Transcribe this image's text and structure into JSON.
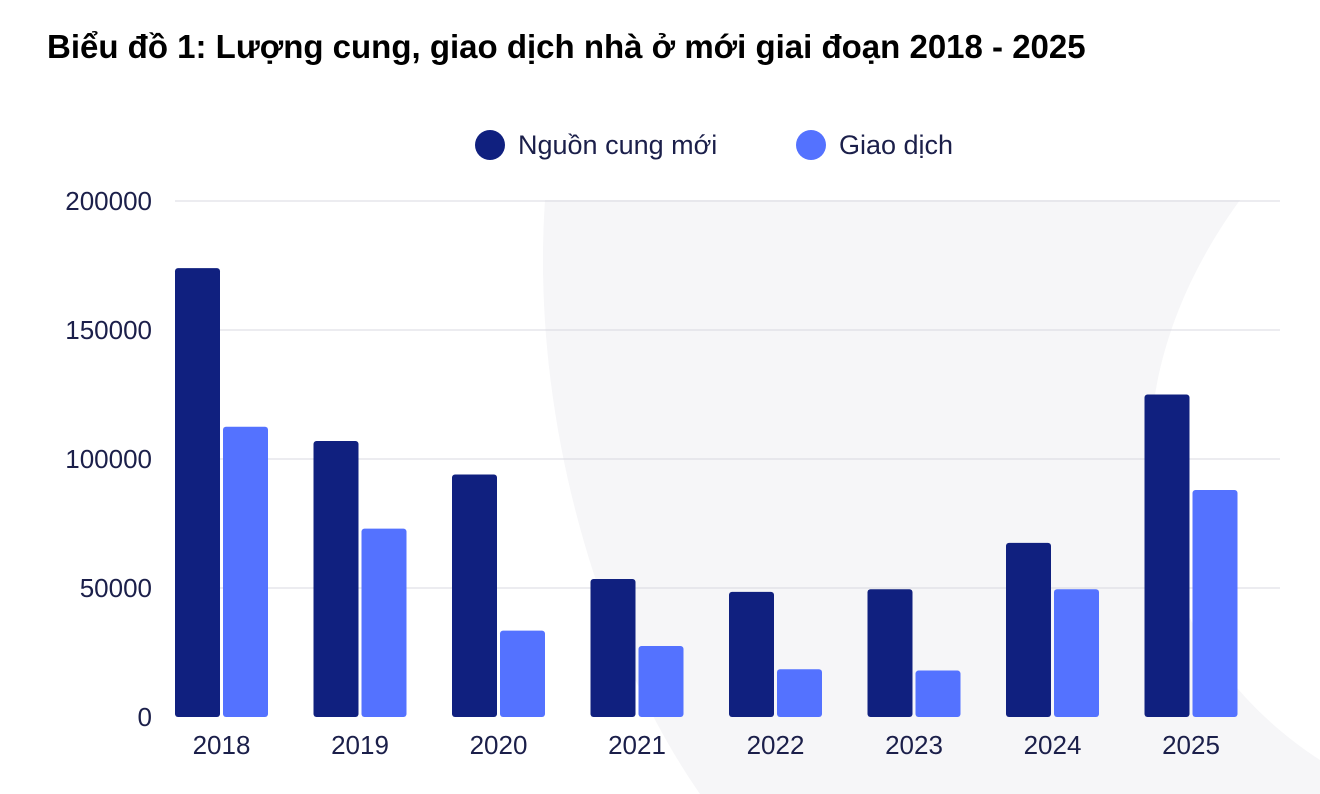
{
  "chart_data": {
    "type": "bar",
    "title": "Biểu đồ 1: Lượng cung, giao dịch nhà ở mới giai đoạn 2018 - 2025",
    "categories": [
      "2018",
      "2019",
      "2020",
      "2021",
      "2022",
      "2023",
      "2024",
      "2025"
    ],
    "series": [
      {
        "name": "Nguồn cung mới",
        "color": "#10207f",
        "values": [
          174000,
          107000,
          94000,
          53500,
          48500,
          49500,
          67500,
          125000
        ]
      },
      {
        "name": "Giao dịch",
        "color": "#5472ff",
        "values": [
          112500,
          73000,
          33500,
          27500,
          18500,
          18000,
          49500,
          88000
        ]
      }
    ],
    "ylim": [
      0,
      200000
    ],
    "yticks": [
      "0",
      "50000",
      "100000",
      "150000",
      "200000"
    ],
    "grid": true,
    "legend": "top-center"
  }
}
